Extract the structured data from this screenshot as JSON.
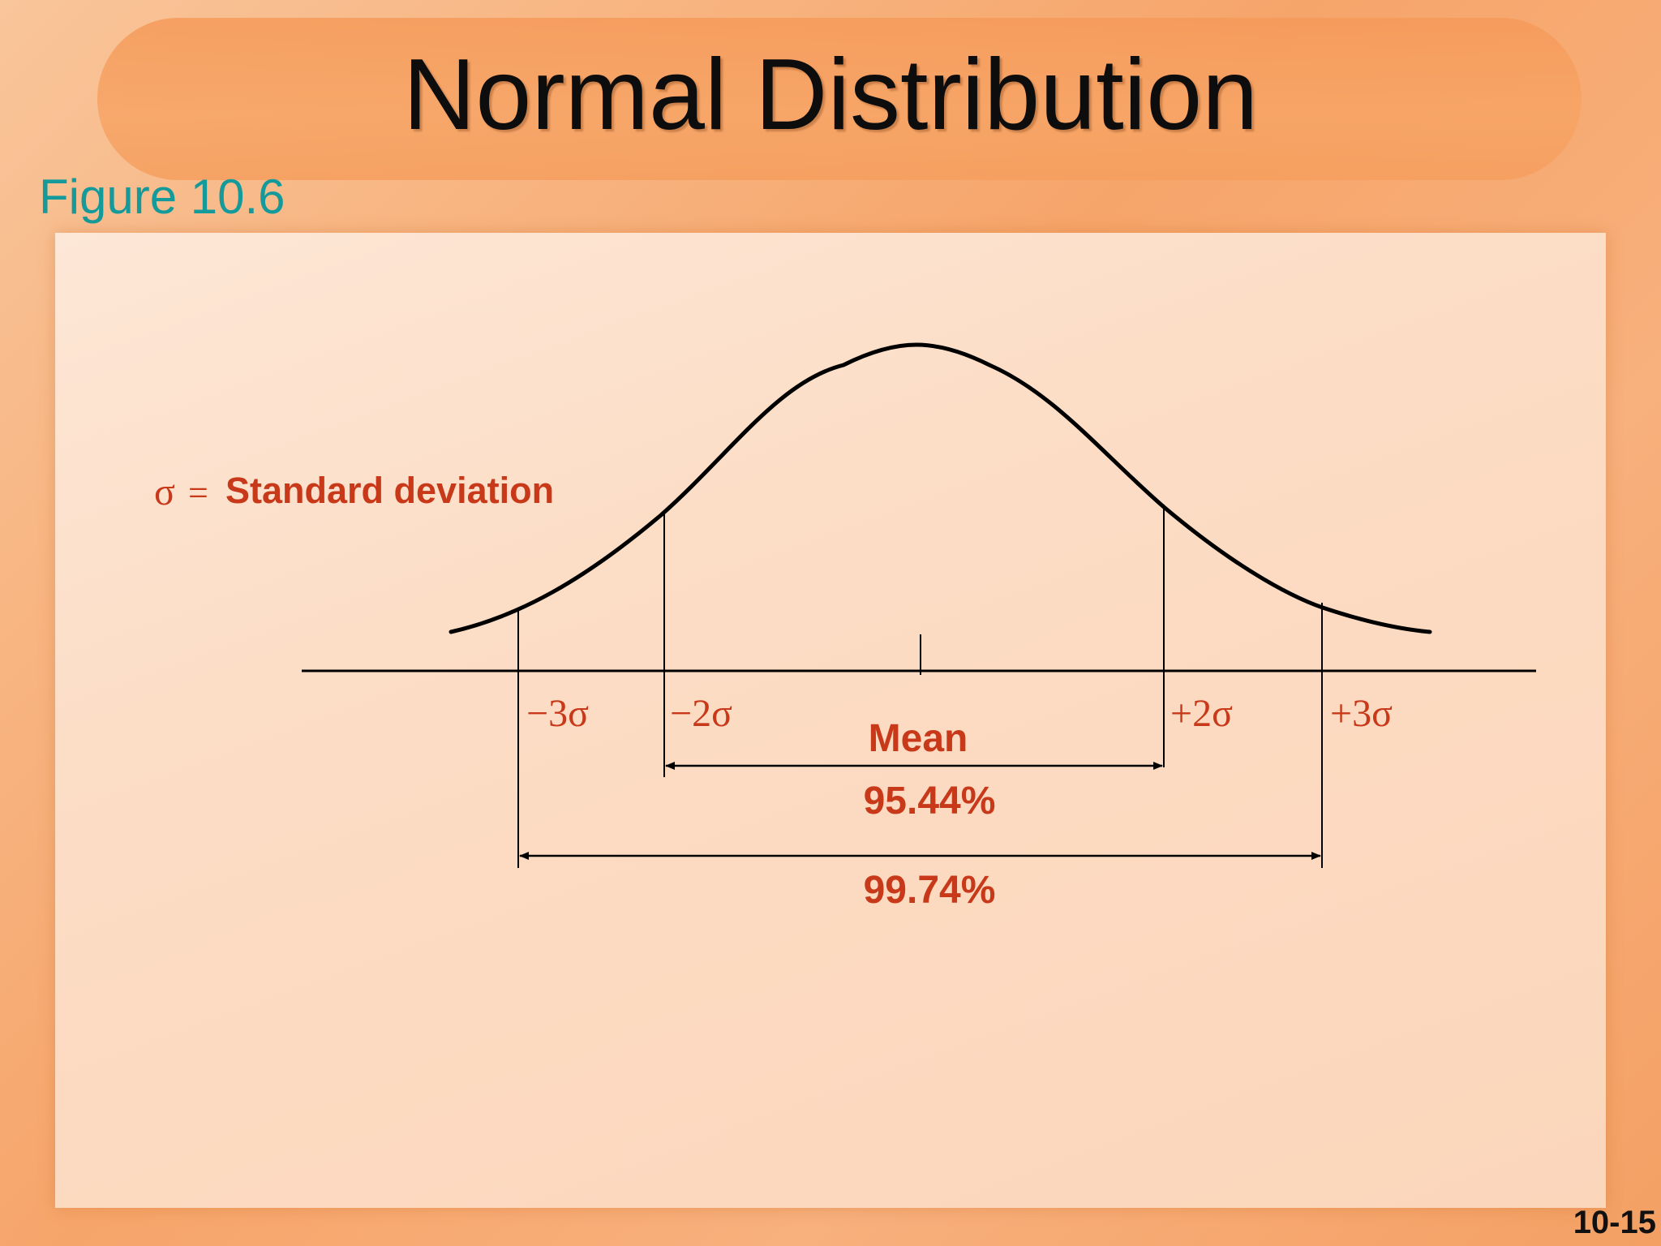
{
  "slide": {
    "title": "Normal Distribution",
    "figure_label": "Figure 10.6",
    "slide_number": "10-15"
  },
  "diagram": {
    "legend_sigma": "σ",
    "legend_equals": "=",
    "legend_text": "Standard deviation",
    "mean_label": "Mean",
    "markers": {
      "minus3": "−3σ",
      "minus2": "−2σ",
      "plus2": "+2σ",
      "plus3": "+3σ"
    },
    "ranges": {
      "two_sigma_percent": "95.44%",
      "three_sigma_percent": "99.74%"
    }
  },
  "colors": {
    "accent": "#c8391a",
    "figure_label": "#149a9a",
    "curve": "#000000"
  }
}
